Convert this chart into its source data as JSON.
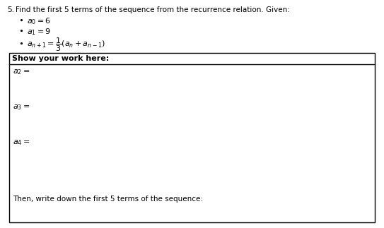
{
  "bg_color": "#ffffff",
  "text_color": "#000000",
  "title_num": "5.",
  "title_text": "Find the first 5 terms of the sequence from the recurrence relation. Given:",
  "b1": "$a_0 = 6$",
  "b2": "$a_1 = 9$",
  "b3_main": "$a_{n+1}$",
  "b3_eq": "$= \\dfrac{1}{3}\\left(a_n + a_{n-1}\\right)$",
  "box_header": "Show your work here:",
  "w1": "$a_2 =$",
  "w2": "$a_3 =$",
  "w3": "$a_4 =$",
  "final": "Then, write down the first 5 terms of the sequence:",
  "fs_title": 7.5,
  "fs_body": 7.5,
  "fs_math": 8.0
}
